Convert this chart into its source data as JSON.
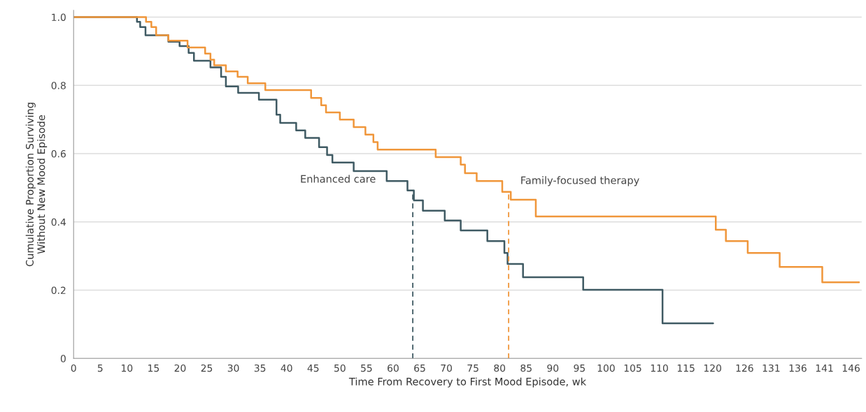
{
  "chart_data": {
    "type": "step",
    "xlabel": "Time From Recovery to First Mood Episode, wk",
    "ylabel": "Cumulative Proportion Surviving\nWithout New Mood Episode",
    "xlim": [
      0,
      148
    ],
    "ylim": [
      0,
      1.02
    ],
    "xticks": [
      0,
      5,
      10,
      15,
      20,
      25,
      30,
      35,
      40,
      45,
      50,
      55,
      60,
      65,
      70,
      75,
      80,
      85,
      90,
      95,
      100,
      105,
      110,
      115,
      120,
      126,
      131,
      136,
      141,
      146
    ],
    "yticks": [
      0,
      0.2,
      0.4,
      0.6,
      0.8,
      {
        "value": 1,
        "label": "1.0"
      }
    ],
    "grid": "y",
    "legend": false,
    "line_style": "solid",
    "marker": "none",
    "series": [
      {
        "name": "Enhanced care",
        "color": "#3f5a63",
        "x": [
          0,
          11.9,
          12.5,
          13.5,
          17.8,
          19.9,
          21.6,
          22.6,
          25.7,
          27.7,
          28.6,
          30.9,
          34.8,
          38.1,
          38.8,
          41.8,
          43.5,
          46.1,
          47.6,
          48.6,
          52.6,
          58.8,
          62.7,
          63.9,
          65.6,
          69.7,
          72.7,
          77.7,
          80.9,
          81.5,
          84.4,
          95.7,
          110.6,
          120.1
        ],
        "values": [
          1.0,
          0.986,
          0.971,
          0.947,
          0.928,
          0.915,
          0.895,
          0.872,
          0.853,
          0.825,
          0.797,
          0.778,
          0.758,
          0.714,
          0.69,
          0.668,
          0.646,
          0.619,
          0.596,
          0.574,
          0.549,
          0.52,
          0.492,
          0.463,
          0.433,
          0.404,
          0.375,
          0.344,
          0.309,
          0.277,
          0.238,
          0.201,
          0.103,
          0.103
        ]
      },
      {
        "name": "Family-focused therapy",
        "color": "#f0963a",
        "x": [
          0,
          13.6,
          14.6,
          15.5,
          17.8,
          21.4,
          24.7,
          25.7,
          26.4,
          28.6,
          30.8,
          32.7,
          36.0,
          44.6,
          46.5,
          47.4,
          50.0,
          52.6,
          54.8,
          56.3,
          57.1,
          68.0,
          72.7,
          73.5,
          75.7,
          80.5,
          82.1,
          86.8,
          120.6,
          122.5,
          126.6,
          132.6,
          140.6,
          147.5
        ],
        "values": [
          1.0,
          0.986,
          0.971,
          0.947,
          0.931,
          0.911,
          0.893,
          0.875,
          0.859,
          0.841,
          0.825,
          0.806,
          0.786,
          0.763,
          0.742,
          0.721,
          0.7,
          0.678,
          0.656,
          0.634,
          0.612,
          0.59,
          0.568,
          0.543,
          0.52,
          0.488,
          0.465,
          0.416,
          0.377,
          0.344,
          0.309,
          0.268,
          0.223,
          0.223
        ]
      }
    ],
    "ref_lines": [
      {
        "axis": "x",
        "value": 63.7,
        "color": "#3f5a63",
        "line_style": "dashed"
      },
      {
        "axis": "x",
        "value": 81.7,
        "color": "#f0963a",
        "line_style": "dashed"
      }
    ]
  }
}
